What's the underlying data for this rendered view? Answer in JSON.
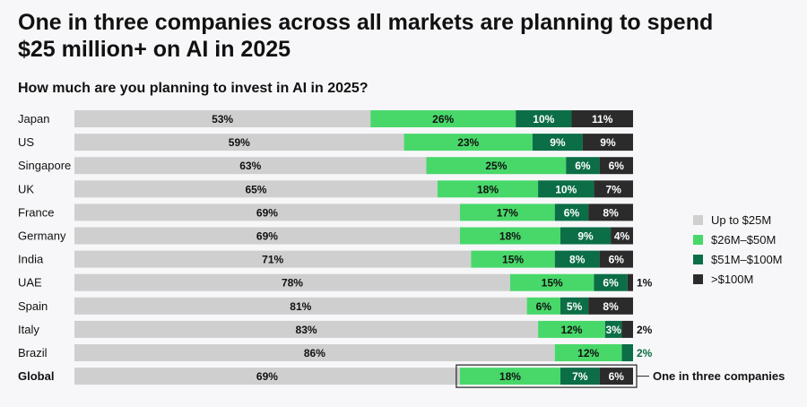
{
  "title": "One in three companies across all markets are planning to spend $25 million+ on AI in 2025",
  "subtitle": "How much are you planning to invest in AI in 2025?",
  "chart_data": {
    "type": "bar",
    "orientation": "horizontal",
    "stacked": true,
    "categories": [
      "Japan",
      "US",
      "Singapore",
      "UK",
      "France",
      "Germany",
      "India",
      "UAE",
      "Spain",
      "Italy",
      "Brazil",
      "Global"
    ],
    "series": [
      {
        "name": "Up to $25M",
        "color": "#cfcfcf",
        "values": [
          53,
          59,
          63,
          65,
          69,
          69,
          71,
          78,
          81,
          83,
          86,
          69
        ]
      },
      {
        "name": "$26M–$50M",
        "color": "#48d86a",
        "values": [
          26,
          23,
          25,
          18,
          17,
          18,
          15,
          15,
          6,
          12,
          12,
          18
        ]
      },
      {
        "name": "$51M–$100M",
        "color": "#0b6e46",
        "values": [
          10,
          9,
          6,
          10,
          6,
          9,
          8,
          6,
          5,
          3,
          2,
          7
        ]
      },
      {
        "name": ">$100M",
        "color": "#2b2b2b",
        "values": [
          11,
          9,
          6,
          7,
          8,
          4,
          6,
          1,
          8,
          2,
          0,
          6
        ]
      }
    ],
    "legend": "right",
    "annotation": "One in three companies"
  }
}
